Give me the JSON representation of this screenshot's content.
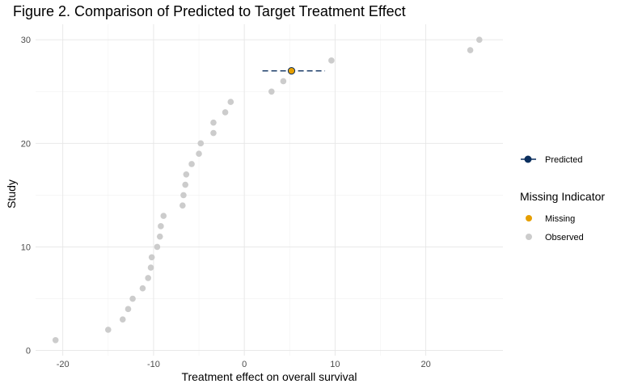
{
  "chart_data": {
    "type": "scatter",
    "title": "Figure 2. Comparison of Predicted to Target Treatment Effect",
    "xlabel": "Treatment effect on overall survival",
    "ylabel": "Study",
    "xlim": [
      -23,
      28.5
    ],
    "ylim": [
      -0.5,
      31.5
    ],
    "x_ticks": [
      -20,
      -10,
      0,
      10,
      20
    ],
    "y_ticks": [
      0,
      10,
      20,
      30
    ],
    "grid": true,
    "colors": {
      "observed": "#cccccc",
      "missing": "#e69f00",
      "predicted": "#0b2f5e"
    },
    "series": [
      {
        "name": "Observed",
        "points": [
          {
            "x": -20.8,
            "y": 1
          },
          {
            "x": -15.0,
            "y": 2
          },
          {
            "x": -13.4,
            "y": 3
          },
          {
            "x": -12.8,
            "y": 4
          },
          {
            "x": -12.3,
            "y": 5
          },
          {
            "x": -11.2,
            "y": 6
          },
          {
            "x": -10.6,
            "y": 7
          },
          {
            "x": -10.3,
            "y": 8
          },
          {
            "x": -10.2,
            "y": 9
          },
          {
            "x": -9.6,
            "y": 10
          },
          {
            "x": -9.3,
            "y": 11
          },
          {
            "x": -9.2,
            "y": 12
          },
          {
            "x": -8.9,
            "y": 13
          },
          {
            "x": -6.8,
            "y": 14
          },
          {
            "x": -6.7,
            "y": 15
          },
          {
            "x": -6.5,
            "y": 16
          },
          {
            "x": -6.4,
            "y": 17
          },
          {
            "x": -5.8,
            "y": 18
          },
          {
            "x": -5.0,
            "y": 19
          },
          {
            "x": -4.8,
            "y": 20
          },
          {
            "x": -3.4,
            "y": 21
          },
          {
            "x": -3.4,
            "y": 22
          },
          {
            "x": -2.1,
            "y": 23
          },
          {
            "x": -1.5,
            "y": 24
          },
          {
            "x": 3.0,
            "y": 25
          },
          {
            "x": 4.3,
            "y": 26
          },
          {
            "x": 9.6,
            "y": 28
          },
          {
            "x": 24.9,
            "y": 29
          },
          {
            "x": 25.9,
            "y": 30
          }
        ]
      },
      {
        "name": "Missing",
        "points": [
          {
            "x": 5.2,
            "y": 27
          }
        ]
      },
      {
        "name": "Predicted",
        "points": [
          {
            "x": 5.2,
            "y": 27,
            "xmin": 2.0,
            "xmax": 8.9
          }
        ]
      }
    ],
    "legend": {
      "position": "right",
      "predicted_label": "Predicted",
      "title": "Missing Indicator",
      "missing_label": "Missing",
      "observed_label": "Observed"
    }
  }
}
